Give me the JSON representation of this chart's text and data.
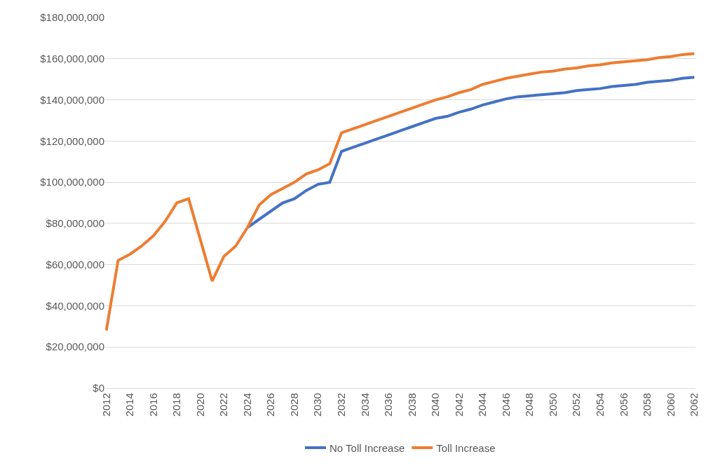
{
  "chart_data": {
    "type": "line",
    "categories": [
      "2012",
      null,
      "2014",
      null,
      "2016",
      null,
      "2018",
      null,
      "2020",
      null,
      "2022",
      null,
      "2024",
      null,
      "2026",
      null,
      "2028",
      null,
      "2030",
      null,
      "2032",
      null,
      "2034",
      null,
      "2036",
      null,
      "2038",
      null,
      "2040",
      null,
      "2042",
      null,
      "2044",
      null,
      "2046",
      null,
      "2048",
      null,
      "2050",
      null,
      "2052",
      null,
      "2054",
      null,
      "2056",
      null,
      "2058",
      null,
      "2060",
      null,
      "2062"
    ],
    "series": [
      {
        "name": "No Toll Increase",
        "color": "#4472c4",
        "values": [
          null,
          null,
          null,
          null,
          null,
          null,
          null,
          null,
          null,
          null,
          null,
          null,
          78000000,
          82000000,
          86000000,
          90000000,
          92000000,
          96000000,
          99000000,
          100000000,
          115000000,
          117000000,
          119000000,
          121000000,
          123000000,
          125000000,
          127000000,
          129000000,
          131000000,
          132000000,
          134000000,
          135500000,
          137500000,
          139000000,
          140500000,
          141500000,
          142000000,
          142500000,
          143000000,
          143500000,
          144500000,
          145000000,
          145500000,
          146500000,
          147000000,
          147500000,
          148500000,
          149000000,
          149500000,
          150500000,
          151000000
        ]
      },
      {
        "name": "Toll Increase",
        "color": "#ed7d31",
        "values": [
          28000000,
          62000000,
          65000000,
          69000000,
          74000000,
          81000000,
          90000000,
          92000000,
          72000000,
          52000000,
          64000000,
          69000000,
          78000000,
          89000000,
          94000000,
          97000000,
          100000000,
          104000000,
          106000000,
          109000000,
          124000000,
          126000000,
          128000000,
          130000000,
          132000000,
          134000000,
          136000000,
          138000000,
          140000000,
          141500000,
          143500000,
          145000000,
          147500000,
          149000000,
          150500000,
          151500000,
          152500000,
          153500000,
          154000000,
          155000000,
          155500000,
          156500000,
          157000000,
          158000000,
          158500000,
          159000000,
          159500000,
          160500000,
          161000000,
          162000000,
          162500000
        ]
      }
    ],
    "ylim": [
      0,
      180000000
    ],
    "yticks": [
      {
        "value": 0,
        "label": "$0"
      },
      {
        "value": 20000000,
        "label": "$20,000,000"
      },
      {
        "value": 40000000,
        "label": "$40,000,000"
      },
      {
        "value": 60000000,
        "label": "$60,000,000"
      },
      {
        "value": 80000000,
        "label": "$80,000,000"
      },
      {
        "value": 100000000,
        "label": "$100,000,000"
      },
      {
        "value": 120000000,
        "label": "$120,000,000"
      },
      {
        "value": 140000000,
        "label": "$140,000,000"
      },
      {
        "value": 160000000,
        "label": "$160,000,000"
      },
      {
        "value": 180000000,
        "label": "$180,000,000"
      }
    ],
    "grid": "y",
    "legend": "bottom",
    "marker": "none",
    "line_style": "solid"
  }
}
